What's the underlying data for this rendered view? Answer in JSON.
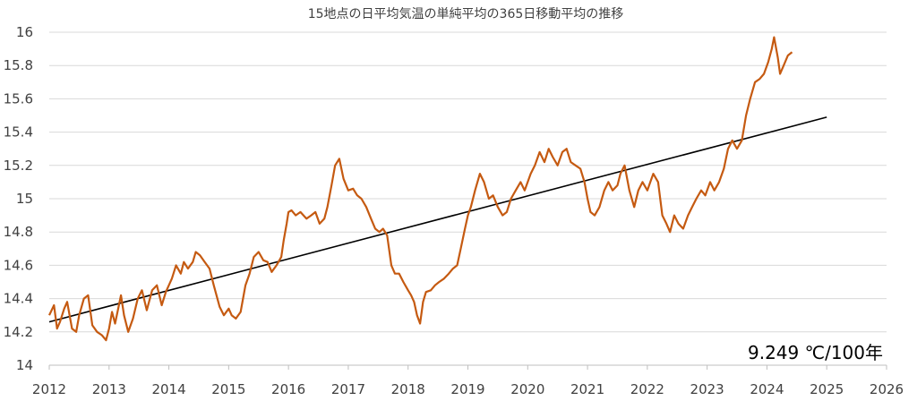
{
  "chart_data": {
    "type": "line",
    "title": "15地点の日平均気温の単純平均の365日移動平均の推移",
    "annotation": "9.249 ℃/100年",
    "xlim": [
      2012,
      2026
    ],
    "ylim": [
      14,
      16
    ],
    "x_ticks": [
      "2012",
      "2013",
      "2014",
      "2015",
      "2016",
      "2017",
      "2018",
      "2019",
      "2020",
      "2021",
      "2022",
      "2023",
      "2024",
      "2025",
      "2026"
    ],
    "y_ticks": [
      "14",
      "14.2",
      "14.4",
      "14.6",
      "14.8",
      "15",
      "15.2",
      "15.4",
      "15.6",
      "15.8",
      "16"
    ],
    "grid": true,
    "legend": "none",
    "colors": {
      "series": "#C55A11",
      "trend": "#000000",
      "grid": "#D9D9D9",
      "axis": "#BFBFBF"
    },
    "series": [
      {
        "role": "moving-average",
        "x": [
          2012.0,
          2012.08,
          2012.13,
          2012.18,
          2012.25,
          2012.3,
          2012.38,
          2012.45,
          2012.5,
          2012.58,
          2012.65,
          2012.72,
          2012.8,
          2012.88,
          2012.95,
          2013.0,
          2013.05,
          2013.1,
          2013.2,
          2013.25,
          2013.32,
          2013.4,
          2013.48,
          2013.55,
          2013.63,
          2013.72,
          2013.8,
          2013.88,
          2013.95,
          2014.05,
          2014.12,
          2014.2,
          2014.25,
          2014.32,
          2014.4,
          2014.45,
          2014.52,
          2014.6,
          2014.68,
          2014.75,
          2014.85,
          2014.92,
          2015.0,
          2015.05,
          2015.12,
          2015.2,
          2015.28,
          2015.35,
          2015.42,
          2015.5,
          2015.58,
          2015.65,
          2015.72,
          2015.8,
          2015.88,
          2015.92,
          2015.97,
          2016.0,
          2016.05,
          2016.12,
          2016.2,
          2016.3,
          2016.38,
          2016.45,
          2016.52,
          2016.6,
          2016.65,
          2016.72,
          2016.78,
          2016.85,
          2016.92,
          2017.0,
          2017.08,
          2017.15,
          2017.22,
          2017.3,
          2017.38,
          2017.45,
          2017.52,
          2017.58,
          2017.65,
          2017.72,
          2017.78,
          2017.85,
          2017.92,
          2018.0,
          2018.05,
          2018.1,
          2018.15,
          2018.2,
          2018.25,
          2018.3,
          2018.38,
          2018.45,
          2018.52,
          2018.6,
          2018.68,
          2018.75,
          2018.82,
          2018.88,
          2018.95,
          2019.0,
          2019.05,
          2019.12,
          2019.2,
          2019.27,
          2019.35,
          2019.42,
          2019.5,
          2019.58,
          2019.65,
          2019.72,
          2019.8,
          2019.88,
          2019.95,
          2020.05,
          2020.12,
          2020.2,
          2020.28,
          2020.35,
          2020.42,
          2020.5,
          2020.58,
          2020.65,
          2020.72,
          2020.8,
          2020.88,
          2020.95,
          2021.0,
          2021.05,
          2021.12,
          2021.2,
          2021.28,
          2021.35,
          2021.42,
          2021.5,
          2021.55,
          2021.62,
          2021.7,
          2021.78,
          2021.85,
          2021.92,
          2022.0,
          2022.05,
          2022.1,
          2022.18,
          2022.25,
          2022.32,
          2022.38,
          2022.45,
          2022.52,
          2022.6,
          2022.68,
          2022.75,
          2022.82,
          2022.9,
          2022.97,
          2023.05,
          2023.12,
          2023.2,
          2023.28,
          2023.35,
          2023.42,
          2023.5,
          2023.58,
          2023.65,
          2023.72,
          2023.8,
          2023.88,
          2023.95,
          2024.02,
          2024.08,
          2024.12,
          2024.18,
          2024.22,
          2024.28,
          2024.35,
          2024.42
        ],
        "y": [
          14.3,
          14.36,
          14.22,
          14.26,
          14.34,
          14.38,
          14.22,
          14.2,
          14.3,
          14.4,
          14.42,
          14.24,
          14.2,
          14.18,
          14.15,
          14.22,
          14.32,
          14.25,
          14.42,
          14.3,
          14.2,
          14.28,
          14.4,
          14.45,
          14.33,
          14.45,
          14.48,
          14.36,
          14.44,
          14.52,
          14.6,
          14.55,
          14.62,
          14.58,
          14.62,
          14.68,
          14.66,
          14.62,
          14.58,
          14.48,
          14.35,
          14.3,
          14.34,
          14.3,
          14.28,
          14.32,
          14.48,
          14.55,
          14.65,
          14.68,
          14.63,
          14.62,
          14.56,
          14.6,
          14.65,
          14.75,
          14.85,
          14.92,
          14.93,
          14.9,
          14.92,
          14.88,
          14.9,
          14.92,
          14.85,
          14.88,
          14.95,
          15.08,
          15.2,
          15.24,
          15.12,
          15.05,
          15.06,
          15.02,
          15.0,
          14.95,
          14.88,
          14.82,
          14.8,
          14.82,
          14.78,
          14.6,
          14.55,
          14.55,
          14.5,
          14.45,
          14.42,
          14.38,
          14.3,
          14.25,
          14.38,
          14.44,
          14.45,
          14.48,
          14.5,
          14.52,
          14.55,
          14.58,
          14.6,
          14.7,
          14.82,
          14.9,
          14.95,
          15.05,
          15.15,
          15.1,
          15.0,
          15.02,
          14.95,
          14.9,
          14.92,
          15.0,
          15.05,
          15.1,
          15.05,
          15.15,
          15.2,
          15.28,
          15.22,
          15.3,
          15.25,
          15.2,
          15.28,
          15.3,
          15.22,
          15.2,
          15.18,
          15.1,
          15.0,
          14.92,
          14.9,
          14.95,
          15.05,
          15.1,
          15.05,
          15.08,
          15.15,
          15.2,
          15.05,
          14.95,
          15.05,
          15.1,
          15.05,
          15.1,
          15.15,
          15.1,
          14.9,
          14.85,
          14.8,
          14.9,
          14.85,
          14.82,
          14.9,
          14.95,
          15.0,
          15.05,
          15.02,
          15.1,
          15.05,
          15.1,
          15.18,
          15.3,
          15.35,
          15.3,
          15.35,
          15.5,
          15.6,
          15.7,
          15.72,
          15.75,
          15.82,
          15.9,
          15.97,
          15.85,
          15.75,
          15.8,
          15.86,
          15.88
        ]
      },
      {
        "role": "linear-trend",
        "x": [
          2012.0,
          2025.0
        ],
        "y": [
          14.26,
          15.49
        ]
      }
    ]
  }
}
